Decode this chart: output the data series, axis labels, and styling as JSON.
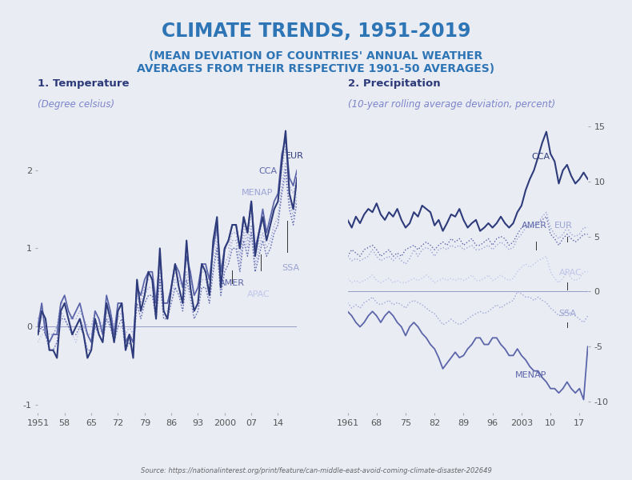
{
  "title": "CLIMATE TRENDS, 1951-2019",
  "subtitle": "(MEAN DEVIATION OF COUNTRIES' ANNUAL WEATHER\nAVERAGES FROM THEIR RESPECTIVE 1901-50 AVERAGES)",
  "title_color": "#2E75B6",
  "bg_color": "#EAECF4",
  "source": "Source: https://nationalinterest.org/print/feature/can-middle-east-avoid-coming-climate-disaster-202649",
  "dark": "#2E3B7A",
  "mid": "#5B65A9",
  "light": "#9BA4D4",
  "vlite": "#BFC6E8",
  "temp": {
    "title": "1. Temperature",
    "subtitle": "(Degree celsius)",
    "years": [
      1951,
      1952,
      1953,
      1954,
      1955,
      1956,
      1957,
      1958,
      1959,
      1960,
      1961,
      1962,
      1963,
      1964,
      1965,
      1966,
      1967,
      1968,
      1969,
      1970,
      1971,
      1972,
      1973,
      1974,
      1975,
      1976,
      1977,
      1978,
      1979,
      1980,
      1981,
      1982,
      1983,
      1984,
      1985,
      1986,
      1987,
      1988,
      1989,
      1990,
      1991,
      1992,
      1993,
      1994,
      1995,
      1996,
      1997,
      1998,
      1999,
      2000,
      2001,
      2002,
      2003,
      2004,
      2005,
      2006,
      2007,
      2008,
      2009,
      2010,
      2011,
      2012,
      2013,
      2014,
      2015,
      2016,
      2017,
      2018,
      2019
    ],
    "EUR": [
      -0.1,
      0.2,
      0.1,
      -0.3,
      -0.3,
      -0.4,
      0.2,
      0.3,
      0.1,
      -0.1,
      0.0,
      0.1,
      -0.1,
      -0.4,
      -0.3,
      0.1,
      -0.1,
      -0.2,
      0.3,
      0.1,
      -0.2,
      0.2,
      0.3,
      -0.3,
      -0.1,
      -0.4,
      0.6,
      0.2,
      0.4,
      0.7,
      0.6,
      0.1,
      1.0,
      0.2,
      0.1,
      0.5,
      0.8,
      0.5,
      0.3,
      1.1,
      0.5,
      0.2,
      0.3,
      0.8,
      0.7,
      0.4,
      1.1,
      1.4,
      0.5,
      1.0,
      1.1,
      1.3,
      1.3,
      1.0,
      1.4,
      1.2,
      1.6,
      0.9,
      1.2,
      1.4,
      1.1,
      1.3,
      1.5,
      1.6,
      2.1,
      2.5,
      1.7,
      1.5,
      1.9
    ],
    "CCA": [
      0.0,
      0.3,
      -0.1,
      -0.2,
      -0.1,
      -0.1,
      0.3,
      0.4,
      0.2,
      0.1,
      0.2,
      0.3,
      0.1,
      -0.1,
      -0.2,
      0.2,
      0.1,
      -0.1,
      0.4,
      0.2,
      -0.1,
      0.3,
      0.3,
      -0.2,
      -0.1,
      -0.2,
      0.5,
      0.4,
      0.6,
      0.7,
      0.7,
      0.3,
      0.9,
      0.3,
      0.3,
      0.5,
      0.8,
      0.7,
      0.5,
      0.9,
      0.7,
      0.4,
      0.5,
      0.8,
      0.8,
      0.6,
      1.0,
      1.3,
      0.7,
      1.0,
      1.1,
      1.3,
      1.3,
      1.0,
      1.4,
      1.2,
      1.6,
      1.0,
      1.2,
      1.5,
      1.2,
      1.4,
      1.6,
      1.7,
      2.2,
      2.4,
      1.9,
      1.8,
      2.0
    ],
    "MENAP": [
      0.1,
      0.2,
      0.0,
      -0.1,
      -0.1,
      0.0,
      0.3,
      0.3,
      0.1,
      0.1,
      0.1,
      0.2,
      0.1,
      0.0,
      0.0,
      0.2,
      0.1,
      0.0,
      0.3,
      0.2,
      0.0,
      0.2,
      0.3,
      -0.1,
      0.0,
      -0.1,
      0.5,
      0.3,
      0.5,
      0.6,
      0.6,
      0.3,
      0.9,
      0.3,
      0.3,
      0.5,
      0.7,
      0.6,
      0.5,
      0.9,
      0.6,
      0.4,
      0.5,
      0.7,
      0.7,
      0.5,
      1.0,
      1.2,
      0.6,
      1.0,
      1.0,
      1.2,
      1.2,
      0.9,
      1.3,
      1.1,
      1.5,
      0.9,
      1.1,
      1.4,
      1.1,
      1.3,
      1.5,
      1.6,
      2.0,
      2.3,
      1.8,
      1.7,
      1.9
    ],
    "AMER": [
      -0.1,
      0.0,
      -0.1,
      -0.3,
      -0.3,
      -0.2,
      0.1,
      0.1,
      0.0,
      -0.1,
      -0.1,
      0.0,
      -0.1,
      -0.3,
      -0.3,
      0.0,
      -0.1,
      -0.2,
      0.1,
      0.0,
      -0.2,
      0.0,
      0.1,
      -0.3,
      -0.2,
      -0.3,
      0.3,
      0.1,
      0.3,
      0.4,
      0.4,
      0.1,
      0.6,
      0.1,
      0.1,
      0.3,
      0.5,
      0.4,
      0.2,
      0.6,
      0.4,
      0.1,
      0.2,
      0.5,
      0.5,
      0.3,
      0.7,
      1.0,
      0.4,
      0.7,
      0.8,
      1.0,
      1.0,
      0.7,
      1.1,
      0.9,
      1.2,
      0.7,
      0.9,
      1.1,
      0.9,
      1.0,
      1.2,
      1.3,
      1.7,
      2.0,
      1.5,
      1.3,
      1.6
    ],
    "APAC": [
      -0.2,
      -0.1,
      -0.1,
      -0.3,
      -0.3,
      -0.2,
      0.0,
      0.1,
      0.0,
      -0.1,
      -0.2,
      0.0,
      -0.1,
      -0.3,
      -0.3,
      0.0,
      -0.1,
      -0.2,
      0.1,
      0.0,
      -0.2,
      0.0,
      0.0,
      -0.3,
      -0.2,
      -0.3,
      0.3,
      0.1,
      0.3,
      0.4,
      0.4,
      0.1,
      0.6,
      0.1,
      0.1,
      0.3,
      0.5,
      0.4,
      0.2,
      0.6,
      0.3,
      0.1,
      0.2,
      0.5,
      0.5,
      0.3,
      0.7,
      1.0,
      0.4,
      0.7,
      0.8,
      1.0,
      1.0,
      0.7,
      1.1,
      0.9,
      1.2,
      0.7,
      0.9,
      1.1,
      0.9,
      1.0,
      1.2,
      1.3,
      1.7,
      1.9,
      1.5,
      1.3,
      1.6
    ],
    "SSA": [
      -0.1,
      0.0,
      -0.1,
      -0.2,
      -0.1,
      0.0,
      0.2,
      0.1,
      0.0,
      0.0,
      0.0,
      0.1,
      0.0,
      -0.1,
      -0.1,
      0.1,
      0.0,
      -0.1,
      0.2,
      0.0,
      -0.1,
      0.1,
      0.2,
      -0.2,
      -0.1,
      -0.2,
      0.4,
      0.2,
      0.4,
      0.5,
      0.5,
      0.2,
      0.7,
      0.2,
      0.2,
      0.4,
      0.6,
      0.5,
      0.3,
      0.7,
      0.5,
      0.2,
      0.3,
      0.6,
      0.6,
      0.4,
      0.8,
      1.1,
      0.5,
      0.8,
      0.9,
      1.1,
      1.1,
      0.8,
      1.2,
      1.0,
      1.3,
      0.8,
      1.0,
      1.2,
      1.0,
      1.1,
      1.3,
      1.4,
      1.8,
      2.1,
      1.6,
      1.4,
      1.7
    ],
    "ylim": [
      -1.1,
      2.7
    ],
    "yticks": [
      -1,
      0,
      1,
      2
    ],
    "xticks": [
      1951,
      1958,
      1965,
      1972,
      1979,
      1986,
      1993,
      2000,
      2007,
      2014
    ],
    "xlabels": [
      "1951",
      "58",
      "65",
      "72",
      "79",
      "86",
      "93",
      "2000",
      "07",
      "14"
    ]
  },
  "precip": {
    "title": "2. Precipitation",
    "subtitle": "(10-year rolling average deviation, percent)",
    "years": [
      1961,
      1962,
      1963,
      1964,
      1965,
      1966,
      1967,
      1968,
      1969,
      1970,
      1971,
      1972,
      1973,
      1974,
      1975,
      1976,
      1977,
      1978,
      1979,
      1980,
      1981,
      1982,
      1983,
      1984,
      1985,
      1986,
      1987,
      1988,
      1989,
      1990,
      1991,
      1992,
      1993,
      1994,
      1995,
      1996,
      1997,
      1998,
      1999,
      2000,
      2001,
      2002,
      2003,
      2004,
      2005,
      2006,
      2007,
      2008,
      2009,
      2010,
      2011,
      2012,
      2013,
      2014,
      2015,
      2016,
      2017,
      2018,
      2019
    ],
    "CCA": [
      6.5,
      5.8,
      6.8,
      6.2,
      7.0,
      7.5,
      7.2,
      8.0,
      7.0,
      6.5,
      7.2,
      6.8,
      7.5,
      6.5,
      5.8,
      6.2,
      7.2,
      6.8,
      7.8,
      7.5,
      7.2,
      6.0,
      6.5,
      5.5,
      6.2,
      7.0,
      6.8,
      7.5,
      6.5,
      5.8,
      6.2,
      6.5,
      5.5,
      5.8,
      6.2,
      5.8,
      6.2,
      6.8,
      6.2,
      5.8,
      6.2,
      7.2,
      7.8,
      9.2,
      10.2,
      11.0,
      12.2,
      13.5,
      14.5,
      12.5,
      11.8,
      9.8,
      11.0,
      11.5,
      10.5,
      9.8,
      10.2,
      10.8,
      10.2
    ],
    "EUR": [
      3.2,
      2.8,
      3.0,
      2.8,
      3.0,
      3.2,
      3.8,
      3.2,
      2.8,
      3.0,
      3.2,
      2.8,
      3.2,
      2.8,
      2.5,
      3.0,
      3.8,
      3.2,
      3.8,
      4.0,
      3.8,
      3.2,
      3.8,
      4.0,
      3.8,
      4.2,
      4.0,
      4.2,
      3.8,
      4.0,
      4.2,
      3.8,
      3.8,
      4.0,
      4.2,
      3.8,
      4.2,
      4.5,
      4.2,
      3.8,
      4.0,
      4.8,
      5.2,
      5.8,
      5.8,
      6.0,
      6.2,
      6.8,
      7.2,
      5.8,
      5.2,
      4.8,
      5.2,
      5.8,
      5.2,
      5.0,
      5.2,
      5.8,
      5.8
    ],
    "AMER": [
      3.2,
      3.8,
      3.5,
      3.2,
      3.8,
      4.0,
      4.2,
      3.8,
      3.2,
      3.5,
      3.8,
      3.2,
      3.5,
      3.2,
      3.8,
      4.0,
      4.2,
      3.8,
      4.2,
      4.5,
      4.2,
      3.8,
      4.2,
      4.5,
      4.2,
      4.8,
      4.5,
      4.8,
      4.2,
      4.5,
      4.8,
      4.2,
      4.2,
      4.5,
      4.8,
      4.2,
      4.8,
      5.0,
      4.8,
      4.2,
      4.5,
      5.2,
      5.8,
      6.0,
      5.8,
      6.0,
      6.2,
      6.5,
      6.8,
      5.2,
      4.8,
      4.2,
      4.8,
      5.2,
      4.8,
      4.5,
      4.8,
      5.2,
      5.2
    ],
    "APAC": [
      1.2,
      0.8,
      1.0,
      0.8,
      1.0,
      1.2,
      1.5,
      1.0,
      0.8,
      1.0,
      1.2,
      0.8,
      1.0,
      0.8,
      0.8,
      1.0,
      1.2,
      1.0,
      1.2,
      1.5,
      1.2,
      0.8,
      1.0,
      1.2,
      1.0,
      1.2,
      1.0,
      1.2,
      1.0,
      1.2,
      1.5,
      1.0,
      1.0,
      1.2,
      1.5,
      1.0,
      1.2,
      1.5,
      1.2,
      1.0,
      1.2,
      1.8,
      2.2,
      2.5,
      2.2,
      2.5,
      2.8,
      3.0,
      3.2,
      1.8,
      1.2,
      0.8,
      1.2,
      1.8,
      1.2,
      1.0,
      1.2,
      1.8,
      1.8
    ],
    "SSA": [
      -1.0,
      -1.5,
      -1.2,
      -1.5,
      -1.0,
      -0.8,
      -0.5,
      -1.0,
      -1.2,
      -1.0,
      -0.8,
      -1.2,
      -1.0,
      -1.2,
      -1.5,
      -1.0,
      -0.8,
      -1.0,
      -1.2,
      -1.5,
      -1.8,
      -2.0,
      -2.5,
      -3.0,
      -2.8,
      -2.5,
      -2.8,
      -3.0,
      -2.8,
      -2.5,
      -2.2,
      -2.0,
      -1.8,
      -2.0,
      -1.8,
      -1.5,
      -1.2,
      -1.5,
      -1.2,
      -1.0,
      -0.8,
      0.0,
      -0.2,
      -0.5,
      -0.5,
      -0.8,
      -0.5,
      -0.8,
      -1.0,
      -1.5,
      -1.8,
      -2.2,
      -2.0,
      -1.8,
      -2.0,
      -2.2,
      -2.5,
      -2.8,
      -2.2
    ],
    "MENAP": [
      -1.8,
      -2.2,
      -2.8,
      -3.2,
      -2.8,
      -2.2,
      -1.8,
      -2.2,
      -2.8,
      -2.2,
      -1.8,
      -2.2,
      -2.8,
      -3.2,
      -4.0,
      -3.2,
      -2.8,
      -3.2,
      -3.8,
      -4.2,
      -4.8,
      -5.2,
      -6.0,
      -7.0,
      -6.5,
      -6.0,
      -5.5,
      -6.0,
      -5.8,
      -5.2,
      -4.8,
      -4.2,
      -4.2,
      -4.8,
      -4.8,
      -4.2,
      -4.2,
      -4.8,
      -5.2,
      -5.8,
      -5.8,
      -5.2,
      -5.8,
      -6.2,
      -6.8,
      -7.2,
      -7.2,
      -7.8,
      -8.2,
      -8.8,
      -8.8,
      -9.2,
      -8.8,
      -8.2,
      -8.8,
      -9.2,
      -8.8,
      -9.8,
      -5.0
    ],
    "ylim": [
      -11,
      16
    ],
    "yticks": [
      -10,
      -5,
      0,
      5,
      10,
      15
    ],
    "xticks": [
      1961,
      1968,
      1975,
      1982,
      1989,
      1996,
      2003,
      2010,
      2017
    ],
    "xlabels": [
      "1961",
      "68",
      "75",
      "82",
      "89",
      "96",
      "2003",
      "10",
      "17"
    ]
  }
}
